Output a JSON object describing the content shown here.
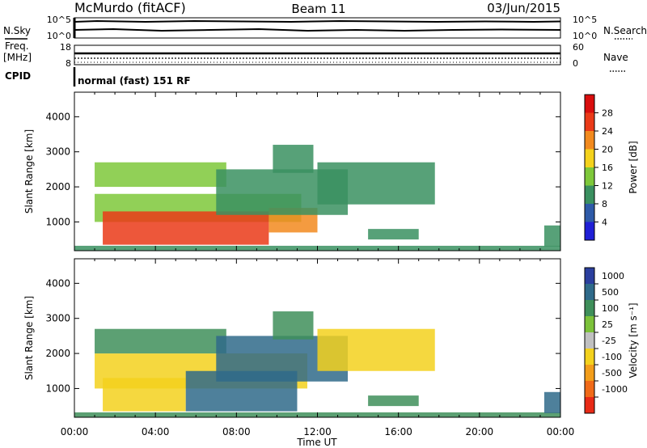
{
  "header": {
    "station": "McMurdo (fitACF)",
    "beam": "Beam 11",
    "date": "03/Jun/2015"
  },
  "top_panels": {
    "nsky_label": "N.Sky",
    "nsky_ticks": [
      "10^5",
      "10^0"
    ],
    "nsearch_label": "N.Search",
    "nsearch_ticks": [
      "10^5",
      "10^0"
    ],
    "freq_label": "Freq.",
    "freq_unit": "[MHz]",
    "freq_ticks": [
      "18",
      "8"
    ],
    "nave_label": "Nave",
    "nave_ticks": [
      "60",
      "0"
    ],
    "cpid_label": "CPID",
    "cpid_text": "normal (fast) 151 RF"
  },
  "colors": {
    "power": [
      "#1f1fd6",
      "#2e5aa8",
      "#3a9060",
      "#7ec83a",
      "#f4d21c",
      "#f28a1e",
      "#ea3a18",
      "#d90e0e"
    ],
    "velocity": [
      "#2b3f9e",
      "#2f6a8a",
      "#3f8f5a",
      "#7cc23a",
      "#c0c0c0",
      "#f3d11d",
      "#f29d1a",
      "#f06a18",
      "#e82a16"
    ]
  },
  "chart_data": [
    {
      "type": "heatmap",
      "panel": "power",
      "ylabel": "Slant Range [km]",
      "xlabel": "Time UT",
      "x_ticks": [
        "00:00",
        "04:00",
        "08:00",
        "12:00",
        "16:00",
        "20:00",
        "00:00"
      ],
      "x_range_hours": [
        0,
        24
      ],
      "y_ticks": [
        1000,
        2000,
        3000,
        4000
      ],
      "y_range_km": [
        180,
        4700
      ],
      "colorbar_label": "Power [dB]",
      "colorbar_ticks": [
        4,
        8,
        12,
        16,
        20,
        24,
        28
      ],
      "colorbar_range": [
        0,
        32
      ],
      "regions": [
        {
          "t0": 0.0,
          "t1": 24.0,
          "r0": 180,
          "r1": 320,
          "value": 8
        },
        {
          "t0": 1.0,
          "t1": 11.2,
          "r0": 1000,
          "r1": 1800,
          "value": 14
        },
        {
          "t0": 1.4,
          "t1": 9.6,
          "r0": 350,
          "r1": 1300,
          "value": 26
        },
        {
          "t0": 9.6,
          "t1": 12.0,
          "r0": 700,
          "r1": 1400,
          "value": 22
        },
        {
          "t0": 1.0,
          "t1": 7.5,
          "r0": 2000,
          "r1": 2700,
          "value": 14
        },
        {
          "t0": 7.0,
          "t1": 13.5,
          "r0": 1200,
          "r1": 2500,
          "value": 8
        },
        {
          "t0": 12.0,
          "t1": 17.8,
          "r0": 1500,
          "r1": 2700,
          "value": 8
        },
        {
          "t0": 9.8,
          "t1": 11.8,
          "r0": 2400,
          "r1": 3200,
          "value": 10
        },
        {
          "t0": 14.5,
          "t1": 17.0,
          "r0": 500,
          "r1": 800,
          "value": 8
        },
        {
          "t0": 23.2,
          "t1": 24.0,
          "r0": 300,
          "r1": 900,
          "value": 8
        }
      ]
    },
    {
      "type": "heatmap",
      "panel": "velocity",
      "ylabel": "Slant Range [km]",
      "xlabel": "Time UT",
      "x_ticks": [
        "00:00",
        "04:00",
        "08:00",
        "12:00",
        "16:00",
        "20:00",
        "00:00"
      ],
      "x_range_hours": [
        0,
        24
      ],
      "y_ticks": [
        1000,
        2000,
        3000,
        4000
      ],
      "y_range_km": [
        180,
        4700
      ],
      "colorbar_label": "Velocity [m s⁻¹]",
      "colorbar_ticks": [
        1000,
        500,
        100,
        25,
        -25,
        -100,
        -500,
        -1000
      ],
      "regions": [
        {
          "t0": 0.0,
          "t1": 24.0,
          "r0": 180,
          "r1": 320,
          "value": 100
        },
        {
          "t0": 1.0,
          "t1": 11.5,
          "r0": 1000,
          "r1": 2000,
          "value": -100
        },
        {
          "t0": 1.4,
          "t1": 5.5,
          "r0": 350,
          "r1": 1300,
          "value": -100
        },
        {
          "t0": 5.5,
          "t1": 11.0,
          "r0": 350,
          "r1": 1500,
          "value": 500
        },
        {
          "t0": 1.0,
          "t1": 7.5,
          "r0": 2000,
          "r1": 2700,
          "value": 100
        },
        {
          "t0": 7.0,
          "t1": 13.5,
          "r0": 1200,
          "r1": 2500,
          "value": 500
        },
        {
          "t0": 12.0,
          "t1": 17.8,
          "r0": 1500,
          "r1": 2700,
          "value": -100
        },
        {
          "t0": 9.8,
          "t1": 11.8,
          "r0": 2400,
          "r1": 3200,
          "value": 100
        },
        {
          "t0": 14.5,
          "t1": 17.0,
          "r0": 500,
          "r1": 800,
          "value": 100
        },
        {
          "t0": 23.2,
          "t1": 24.0,
          "r0": 300,
          "r1": 900,
          "value": 500
        }
      ]
    }
  ]
}
